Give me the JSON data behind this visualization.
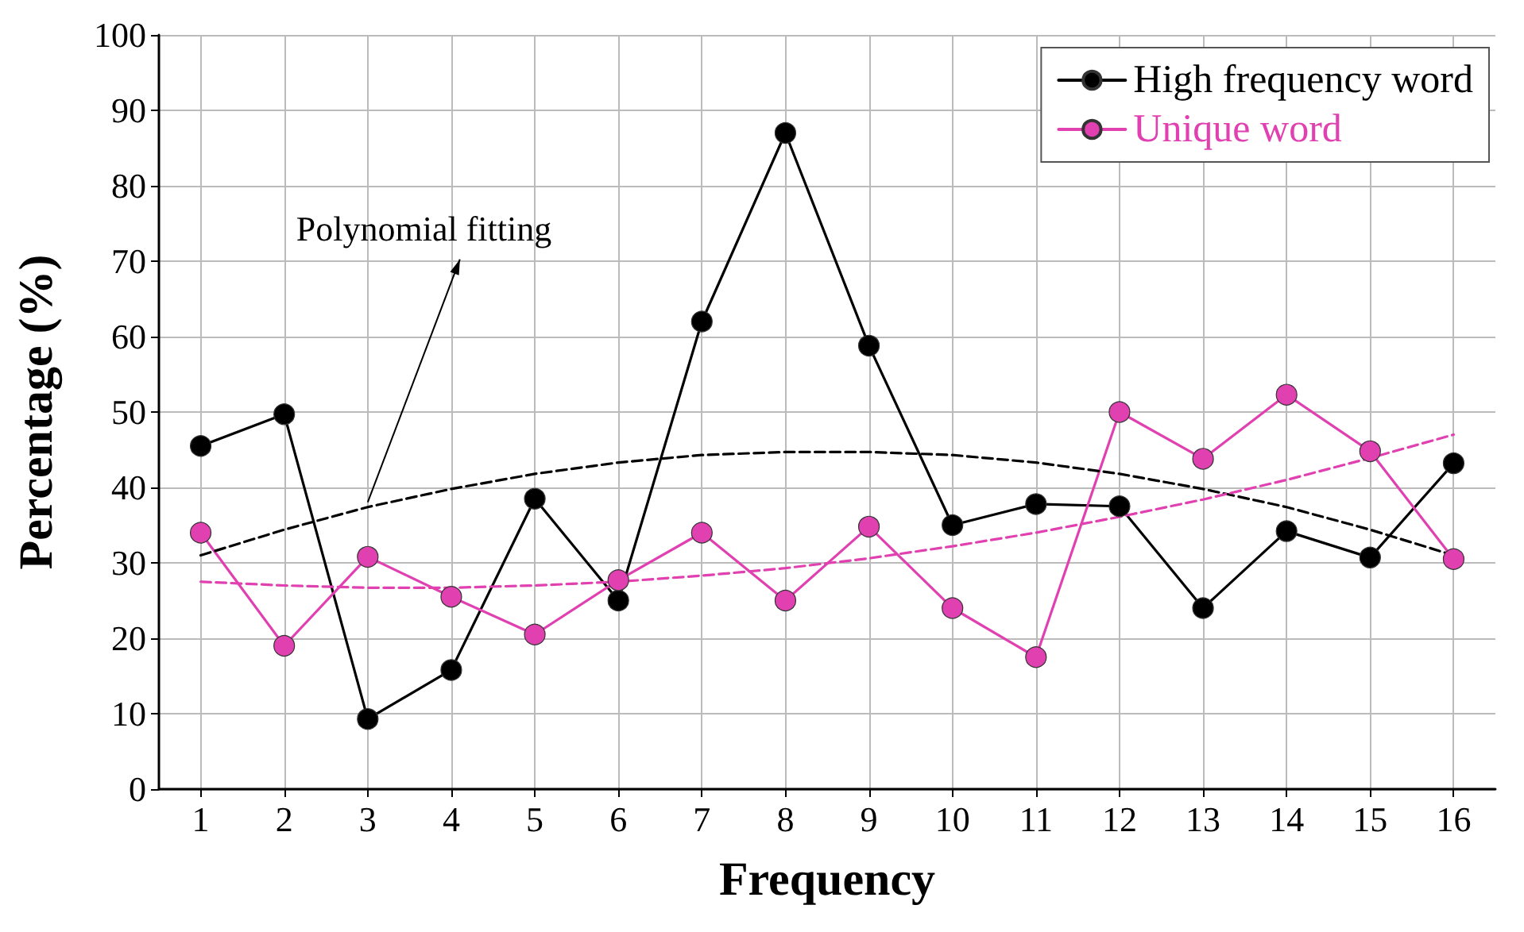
{
  "chart_data": {
    "type": "line",
    "xlabel": "Frequency",
    "ylabel": "Percentage (%)",
    "x": [
      1,
      2,
      3,
      4,
      5,
      6,
      7,
      8,
      9,
      10,
      11,
      12,
      13,
      14,
      15,
      16
    ],
    "xlim": [
      0.5,
      16.5
    ],
    "xticks": [
      1,
      2,
      3,
      4,
      5,
      6,
      7,
      8,
      9,
      10,
      11,
      12,
      13,
      14,
      15,
      16
    ],
    "ylim": [
      0,
      100
    ],
    "yticks": [
      0,
      10,
      20,
      30,
      40,
      50,
      60,
      70,
      80,
      90,
      100
    ],
    "grid": true,
    "legend": "top right",
    "marker": "circle",
    "line_style": "solid",
    "series": [
      {
        "name": "High frequency word",
        "color": "#000000",
        "values": [
          45.5,
          49.7,
          9.3,
          15.8,
          38.5,
          25,
          62,
          87,
          58.8,
          35,
          37.8,
          37.5,
          24,
          34.2,
          30.7,
          43.2
        ]
      },
      {
        "name": "Unique word",
        "color": "#e040b0",
        "values": [
          34,
          19,
          30.8,
          25.5,
          20.5,
          27.7,
          34,
          25,
          34.8,
          24,
          17.5,
          50,
          43.8,
          52.3,
          44.8,
          30.5
        ]
      },
      {
        "type": "line",
        "color": "#000000",
        "line_style": "dashed",
        "marker": "none",
        "x": [
          1,
          2,
          3,
          4,
          5,
          6,
          7,
          8,
          9,
          10,
          11,
          12,
          13,
          14,
          15,
          16
        ],
        "values": [
          31,
          34.4,
          37.4,
          39.8,
          41.8,
          43.3,
          44.3,
          44.7,
          44.7,
          44.3,
          43.3,
          41.8,
          39.8,
          37.4,
          34.4,
          31
        ]
      },
      {
        "type": "line",
        "color": "#e040b0",
        "line_style": "dashed",
        "marker": "none",
        "x": [
          1,
          2,
          3,
          4,
          5,
          6,
          7,
          8,
          9,
          10,
          11,
          12,
          13,
          14,
          15,
          16
        ],
        "values": [
          27.5,
          27,
          26.7,
          26.7,
          27,
          27.5,
          28.3,
          29.3,
          30.6,
          32.2,
          34,
          36.1,
          38.4,
          41,
          43.9,
          47
        ]
      }
    ],
    "annotations": [
      {
        "text": "Polynomial fitting",
        "x": 3,
        "y": 37.4
      }
    ]
  }
}
